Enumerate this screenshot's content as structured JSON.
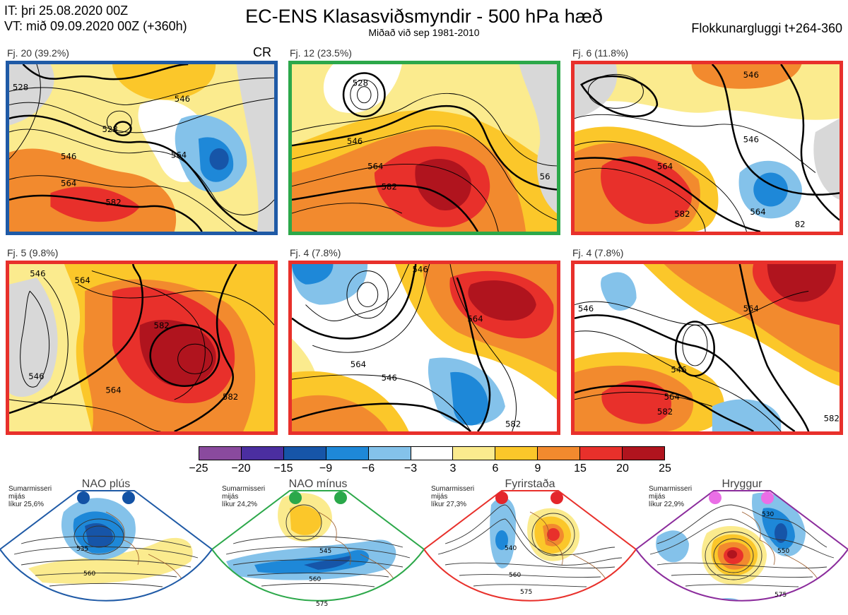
{
  "header": {
    "it_line": "IT: þri 25.08.2020 00Z",
    "vt_line": "VT: mið 09.09.2020 00Z  (+360h)",
    "title": "EC-ENS Klasasviðsmyndir - 500 hPa hæð",
    "subtitle": "Miðað við sep 1981-2010",
    "window": "Flokkunargluggi t+264-360"
  },
  "colors": {
    "blue_frame": "#1f5aa6",
    "green_frame": "#2ca84a",
    "red_frame": "#e8302b",
    "purple_frame": "#8b2c9c"
  },
  "panels": [
    {
      "label": "Fj. 20 (39.2%)",
      "frame": "blue",
      "tag": "CR",
      "contours": [
        "528",
        "546",
        "564",
        "546",
        "564",
        "582"
      ]
    },
    {
      "label": "Fj. 12 (23.5%)",
      "frame": "green",
      "contours": [
        "528",
        "546",
        "564",
        "582",
        "56"
      ]
    },
    {
      "label": "Fj. 6 (11.8%)",
      "frame": "red",
      "contours": [
        "546",
        "546",
        "564",
        "582",
        "564",
        "82"
      ]
    },
    {
      "label": "Fj. 5 (9.8%)",
      "frame": "red",
      "contours": [
        "546",
        "564",
        "582",
        "564",
        "546",
        "582"
      ]
    },
    {
      "label": "Fj. 4 (7.8%)",
      "frame": "red",
      "contours": [
        "546",
        "564",
        "546",
        "564",
        "582"
      ]
    },
    {
      "label": "Fj. 4 (7.8%)",
      "frame": "red",
      "contours": [
        "546",
        "564",
        "546",
        "564",
        "582",
        "582"
      ]
    }
  ],
  "colorbar": {
    "colors": [
      "#8a4a9e",
      "#4b2ea0",
      "#1655a8",
      "#1e88d8",
      "#84c2ea",
      "#ffffff",
      "#fbeb8e",
      "#fbc72a",
      "#f28a2e",
      "#e8302b",
      "#b0141e"
    ],
    "ticks": [
      "−25",
      "−20",
      "−15",
      "−9",
      "−6",
      "−3",
      "3",
      "6",
      "9",
      "15",
      "20",
      "25"
    ]
  },
  "regimes": [
    {
      "name": "NAO plús",
      "season": "Sumarmisseri",
      "meaning": "mijás",
      "likelihood": "líkur 25,6%",
      "dot_color": "#1252a5",
      "frame": "#1f5aa6",
      "contours": [
        "535",
        "560"
      ]
    },
    {
      "name": "NAO mínus",
      "season": "Sumarmisseri",
      "meaning": "mijás",
      "likelihood": "líkur 24,2%",
      "dot_color": "#2aa84a",
      "frame": "#2ca84a",
      "contours": [
        "545",
        "560",
        "575"
      ]
    },
    {
      "name": "Fyrirstaða",
      "season": "Sumarmisseri",
      "meaning": "mijás",
      "likelihood": "líkur 27,3%",
      "dot_color": "#e4262b",
      "frame": "#e8302b",
      "contours": [
        "540",
        "560",
        "575"
      ]
    },
    {
      "name": "Hryggur",
      "season": "Sumarmisseri",
      "meaning": "mijás",
      "likelihood": "líkur 22,9%",
      "dot_color": "#ea6ee6",
      "frame": "#8b2c9c",
      "contours": [
        "530",
        "550",
        "575"
      ]
    }
  ]
}
